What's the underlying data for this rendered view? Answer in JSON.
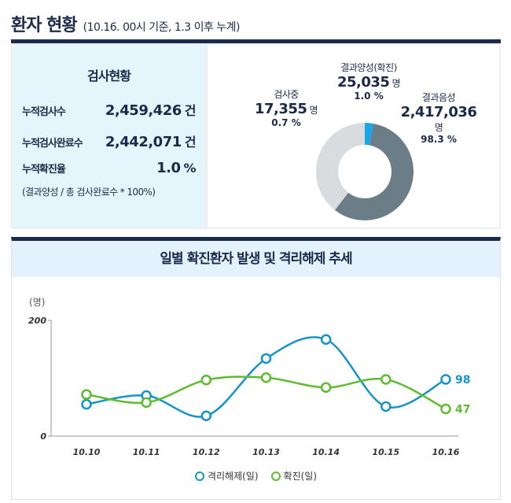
{
  "header": {
    "title": "환자 현황",
    "subtitle": "(10.16. 00시 기준, 1.3 이후 누계)"
  },
  "test_status": {
    "title": "검사현황",
    "rows": [
      {
        "label": "누적검사수",
        "value": "2,459,426",
        "unit": "건"
      },
      {
        "label": "누적검사완료수",
        "value": "2,442,071",
        "unit": "건"
      },
      {
        "label": "누적확진율",
        "value": "1.0",
        "unit": "%"
      }
    ],
    "note": "(결과양성 / 총 검사완료수 * 100%)"
  },
  "donut": {
    "positive": {
      "name": "결과양성(확진)",
      "value": "25,035",
      "unit": "명",
      "pct": "1.0 %"
    },
    "testing": {
      "name": "검사중",
      "value": "17,355",
      "unit": "명",
      "pct": "0.7 %"
    },
    "negative": {
      "name": "결과음성",
      "value": "2,417,036",
      "unit": "명",
      "pct": "98.3 %"
    },
    "colors": {
      "positive": "#1ba6e8",
      "testing": "#d9dcdf",
      "negative": "#6b7d87"
    }
  },
  "trend": {
    "title": "일별 확진환자 발생 및 격리해제 추세",
    "unit_label": "(명)",
    "legend": {
      "released": "격리해제(일)",
      "confirmed": "확진(일)"
    }
  },
  "chart_data": {
    "type": "line",
    "title": "일별 확진환자 발생 및 격리해제 추세",
    "ylabel": "(명)",
    "ylim": [
      0,
      200
    ],
    "yticks": [
      0,
      200
    ],
    "categories": [
      "10.10",
      "10.11",
      "10.12",
      "10.13",
      "10.14",
      "10.15",
      "10.16"
    ],
    "series": [
      {
        "name": "격리해제(일)",
        "color": "#1694c9",
        "values": [
          55,
          70,
          35,
          134,
          167,
          51,
          98
        ]
      },
      {
        "name": "확진(일)",
        "color": "#5fbb2f",
        "values": [
          72,
          58,
          97,
          101,
          84,
          98,
          47
        ]
      }
    ],
    "end_labels": [
      "98",
      "47"
    ],
    "grid": false,
    "legend_position": "bottom"
  }
}
